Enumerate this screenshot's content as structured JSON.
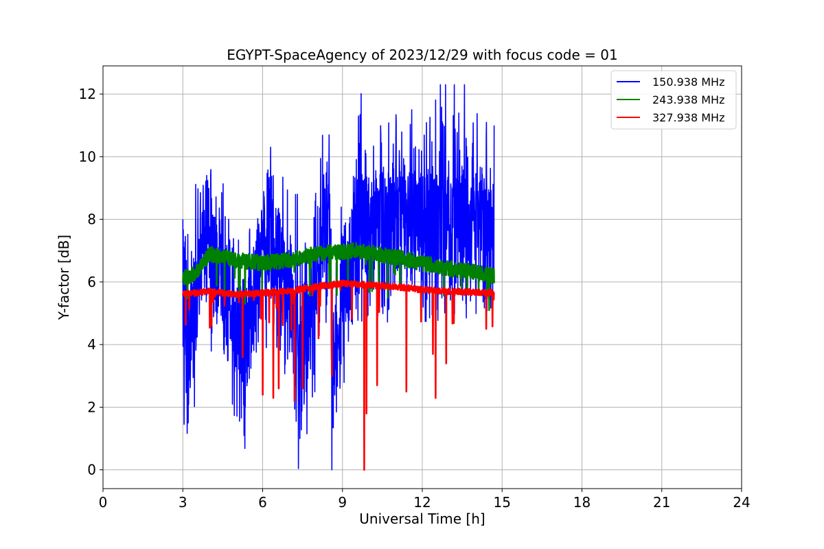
{
  "chart_data": {
    "type": "line",
    "title": "EGYPT-SpaceAgency of 2023/12/29 with focus code = 01",
    "xlabel": "Universal Time [h]",
    "ylabel": "Y-factor [dB]",
    "xlim": [
      0,
      24
    ],
    "ylim": [
      -0.6,
      12.9
    ],
    "xticks": [
      0,
      3,
      6,
      9,
      12,
      15,
      18,
      21,
      24
    ],
    "yticks": [
      0,
      2,
      4,
      6,
      8,
      10,
      12
    ],
    "grid": true,
    "legend_position": "top-right",
    "time_range": [
      3.0,
      14.7
    ],
    "series": [
      {
        "name": "150.938 MHz",
        "color": "#0000ff",
        "baseline": 6.2,
        "noise": 1.3,
        "min": 0,
        "max": 12.3,
        "keypoints": [
          [
            3.0,
            8.0
          ],
          [
            3.2,
            1.5
          ],
          [
            3.9,
            9.4
          ],
          [
            5.3,
            1.1
          ],
          [
            6.3,
            10.3
          ],
          [
            7.4,
            1.0
          ],
          [
            8.5,
            10.7
          ],
          [
            8.6,
            0.0
          ],
          [
            9.6,
            11.3
          ],
          [
            11.6,
            11.5
          ],
          [
            13.2,
            12.3
          ],
          [
            14.7,
            11.0
          ]
        ]
      },
      {
        "name": "243.938 MHz",
        "color": "#008000",
        "baseline": 6.6,
        "noise": 0.25,
        "min": 4.7,
        "max": 7.4,
        "keypoints": [
          [
            3.0,
            6.1
          ],
          [
            3.5,
            6.3
          ],
          [
            4.0,
            6.9
          ],
          [
            5.0,
            6.7
          ],
          [
            6.0,
            6.6
          ],
          [
            7.0,
            6.7
          ],
          [
            8.0,
            6.9
          ],
          [
            9.5,
            7.0
          ],
          [
            11.0,
            6.8
          ],
          [
            12.5,
            6.5
          ],
          [
            14.0,
            6.3
          ],
          [
            14.7,
            6.2
          ]
        ]
      },
      {
        "name": "327.938 MHz",
        "color": "#ff0000",
        "baseline": 5.7,
        "noise": 0.1,
        "min": 0,
        "max": 6.2,
        "keypoints": [
          [
            3.0,
            5.6
          ],
          [
            4.0,
            5.7
          ],
          [
            5.0,
            5.6
          ],
          [
            6.0,
            5.65
          ],
          [
            7.0,
            5.7
          ],
          [
            8.0,
            5.85
          ],
          [
            9.0,
            5.95
          ],
          [
            10.0,
            5.9
          ],
          [
            11.0,
            5.85
          ],
          [
            12.0,
            5.75
          ],
          [
            13.0,
            5.7
          ],
          [
            14.7,
            5.65
          ]
        ],
        "dips": [
          [
            5.25,
            3.6
          ],
          [
            6.0,
            2.4
          ],
          [
            6.4,
            2.3
          ],
          [
            6.6,
            2.6
          ],
          [
            7.2,
            2.2
          ],
          [
            7.5,
            2.6
          ],
          [
            8.1,
            4.2
          ],
          [
            8.6,
            3.0
          ],
          [
            9.82,
            0.0
          ],
          [
            9.9,
            1.8
          ],
          [
            10.3,
            2.7
          ],
          [
            11.4,
            2.5
          ],
          [
            12.4,
            3.7
          ],
          [
            12.5,
            2.3
          ],
          [
            12.9,
            3.4
          ],
          [
            14.4,
            4.5
          ]
        ]
      }
    ]
  }
}
